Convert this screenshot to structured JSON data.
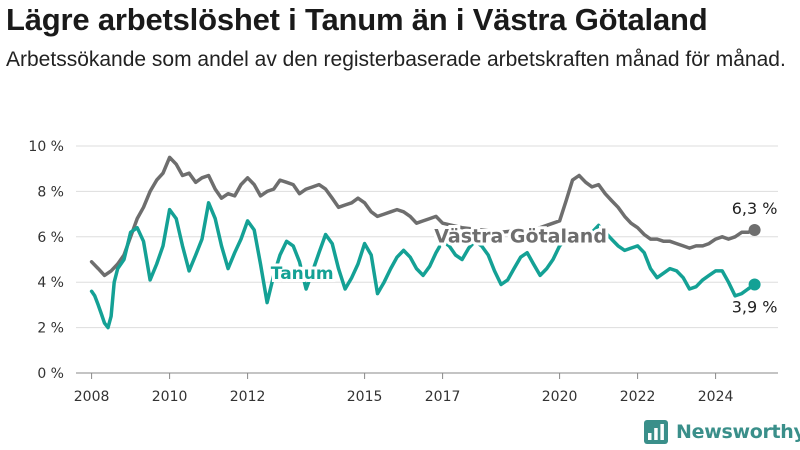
{
  "title": "Lägre arbetslöshet i Tanum än i Västra Götaland",
  "subtitle": "Arbetssökande som andel av den registerbaserade arbetskraften månad för månad.",
  "brand": {
    "name": "Newsworthy",
    "icon": "bar-chart-logo-icon",
    "color": "#3a8f8a"
  },
  "chart_data": {
    "type": "line",
    "ylim": [
      0,
      10
    ],
    "xlim": [
      2007.6,
      2025.6
    ],
    "y_ticks": [
      {
        "value": 0,
        "label": "0 %"
      },
      {
        "value": 2,
        "label": "2 %"
      },
      {
        "value": 4,
        "label": "4 %"
      },
      {
        "value": 6,
        "label": "6 %"
      },
      {
        "value": 8,
        "label": "8 %"
      },
      {
        "value": 10,
        "label": "10 %"
      }
    ],
    "x_ticks": [
      {
        "value": 2008,
        "label": "2008"
      },
      {
        "value": 2010,
        "label": "2010"
      },
      {
        "value": 2012,
        "label": "2012"
      },
      {
        "value": 2015,
        "label": "2015"
      },
      {
        "value": 2017,
        "label": "2017"
      },
      {
        "value": 2020,
        "label": "2020"
      },
      {
        "value": 2022,
        "label": "2022"
      },
      {
        "value": 2024,
        "label": "2024"
      }
    ],
    "grid": true,
    "series": [
      {
        "name": "Västra Götaland",
        "color": "#6e6e6e",
        "end_label": "6,3 %",
        "points": [
          [
            2008.0,
            4.9
          ],
          [
            2008.17,
            4.6
          ],
          [
            2008.33,
            4.3
          ],
          [
            2008.5,
            4.5
          ],
          [
            2008.67,
            4.8
          ],
          [
            2008.83,
            5.2
          ],
          [
            2009.0,
            6.0
          ],
          [
            2009.17,
            6.8
          ],
          [
            2009.33,
            7.3
          ],
          [
            2009.5,
            8.0
          ],
          [
            2009.67,
            8.5
          ],
          [
            2009.83,
            8.8
          ],
          [
            2010.0,
            9.5
          ],
          [
            2010.17,
            9.2
          ],
          [
            2010.33,
            8.7
          ],
          [
            2010.5,
            8.8
          ],
          [
            2010.67,
            8.4
          ],
          [
            2010.83,
            8.6
          ],
          [
            2011.0,
            8.7
          ],
          [
            2011.17,
            8.1
          ],
          [
            2011.33,
            7.7
          ],
          [
            2011.5,
            7.9
          ],
          [
            2011.67,
            7.8
          ],
          [
            2011.83,
            8.3
          ],
          [
            2012.0,
            8.6
          ],
          [
            2012.17,
            8.3
          ],
          [
            2012.33,
            7.8
          ],
          [
            2012.5,
            8.0
          ],
          [
            2012.67,
            8.1
          ],
          [
            2012.83,
            8.5
          ],
          [
            2013.0,
            8.4
          ],
          [
            2013.17,
            8.3
          ],
          [
            2013.33,
            7.9
          ],
          [
            2013.5,
            8.1
          ],
          [
            2013.67,
            8.2
          ],
          [
            2013.83,
            8.3
          ],
          [
            2014.0,
            8.1
          ],
          [
            2014.17,
            7.7
          ],
          [
            2014.33,
            7.3
          ],
          [
            2014.5,
            7.4
          ],
          [
            2014.67,
            7.5
          ],
          [
            2014.83,
            7.7
          ],
          [
            2015.0,
            7.5
          ],
          [
            2015.17,
            7.1
          ],
          [
            2015.33,
            6.9
          ],
          [
            2015.5,
            7.0
          ],
          [
            2015.67,
            7.1
          ],
          [
            2015.83,
            7.2
          ],
          [
            2016.0,
            7.1
          ],
          [
            2016.17,
            6.9
          ],
          [
            2016.33,
            6.6
          ],
          [
            2016.5,
            6.7
          ],
          [
            2016.67,
            6.8
          ],
          [
            2016.83,
            6.9
          ],
          [
            2017.0,
            6.6
          ],
          [
            2017.5,
            6.4
          ],
          [
            2018.0,
            6.3
          ],
          [
            2018.5,
            6.2
          ],
          [
            2019.0,
            6.3
          ],
          [
            2019.5,
            6.4
          ],
          [
            2019.83,
            6.6
          ],
          [
            2020.0,
            6.7
          ],
          [
            2020.17,
            7.6
          ],
          [
            2020.33,
            8.5
          ],
          [
            2020.5,
            8.7
          ],
          [
            2020.67,
            8.4
          ],
          [
            2020.83,
            8.2
          ],
          [
            2021.0,
            8.3
          ],
          [
            2021.17,
            7.9
          ],
          [
            2021.33,
            7.6
          ],
          [
            2021.5,
            7.3
          ],
          [
            2021.67,
            6.9
          ],
          [
            2021.83,
            6.6
          ],
          [
            2022.0,
            6.4
          ],
          [
            2022.17,
            6.1
          ],
          [
            2022.33,
            5.9
          ],
          [
            2022.5,
            5.9
          ],
          [
            2022.67,
            5.8
          ],
          [
            2022.83,
            5.8
          ],
          [
            2023.0,
            5.7
          ],
          [
            2023.17,
            5.6
          ],
          [
            2023.33,
            5.5
          ],
          [
            2023.5,
            5.6
          ],
          [
            2023.67,
            5.6
          ],
          [
            2023.83,
            5.7
          ],
          [
            2024.0,
            5.9
          ],
          [
            2024.17,
            6.0
          ],
          [
            2024.33,
            5.9
          ],
          [
            2024.5,
            6.0
          ],
          [
            2024.67,
            6.2
          ],
          [
            2024.83,
            6.2
          ],
          [
            2025.0,
            6.3
          ]
        ]
      },
      {
        "name": "Tanum",
        "color": "#14a195",
        "end_label": "3,9 %",
        "points": [
          [
            2008.0,
            3.6
          ],
          [
            2008.08,
            3.4
          ],
          [
            2008.17,
            3.0
          ],
          [
            2008.25,
            2.6
          ],
          [
            2008.33,
            2.2
          ],
          [
            2008.42,
            2.0
          ],
          [
            2008.5,
            2.5
          ],
          [
            2008.58,
            4.0
          ],
          [
            2008.67,
            4.6
          ],
          [
            2008.83,
            5.0
          ],
          [
            2009.0,
            6.2
          ],
          [
            2009.17,
            6.4
          ],
          [
            2009.33,
            5.8
          ],
          [
            2009.5,
            4.1
          ],
          [
            2009.67,
            4.8
          ],
          [
            2009.83,
            5.6
          ],
          [
            2010.0,
            7.2
          ],
          [
            2010.17,
            6.8
          ],
          [
            2010.33,
            5.6
          ],
          [
            2010.5,
            4.5
          ],
          [
            2010.67,
            5.2
          ],
          [
            2010.83,
            5.9
          ],
          [
            2011.0,
            7.5
          ],
          [
            2011.17,
            6.8
          ],
          [
            2011.33,
            5.6
          ],
          [
            2011.5,
            4.6
          ],
          [
            2011.67,
            5.3
          ],
          [
            2011.83,
            5.9
          ],
          [
            2012.0,
            6.7
          ],
          [
            2012.17,
            6.3
          ],
          [
            2012.33,
            4.8
          ],
          [
            2012.5,
            3.1
          ],
          [
            2012.67,
            4.3
          ],
          [
            2012.83,
            5.2
          ],
          [
            2013.0,
            5.8
          ],
          [
            2013.17,
            5.6
          ],
          [
            2013.33,
            4.9
          ],
          [
            2013.5,
            3.7
          ],
          [
            2013.67,
            4.5
          ],
          [
            2013.83,
            5.3
          ],
          [
            2014.0,
            6.1
          ],
          [
            2014.17,
            5.7
          ],
          [
            2014.33,
            4.6
          ],
          [
            2014.5,
            3.7
          ],
          [
            2014.67,
            4.2
          ],
          [
            2014.83,
            4.8
          ],
          [
            2015.0,
            5.7
          ],
          [
            2015.17,
            5.2
          ],
          [
            2015.33,
            3.5
          ],
          [
            2015.5,
            4.0
          ],
          [
            2015.67,
            4.6
          ],
          [
            2015.83,
            5.1
          ],
          [
            2016.0,
            5.4
          ],
          [
            2016.17,
            5.1
          ],
          [
            2016.33,
            4.6
          ],
          [
            2016.5,
            4.3
          ],
          [
            2016.67,
            4.7
          ],
          [
            2016.83,
            5.3
          ],
          [
            2017.0,
            5.8
          ],
          [
            2017.17,
            5.6
          ],
          [
            2017.33,
            5.2
          ],
          [
            2017.5,
            5.0
          ],
          [
            2017.67,
            5.5
          ],
          [
            2017.83,
            5.8
          ],
          [
            2018.0,
            5.6
          ],
          [
            2018.17,
            5.2
          ],
          [
            2018.33,
            4.5
          ],
          [
            2018.5,
            3.9
          ],
          [
            2018.67,
            4.1
          ],
          [
            2018.83,
            4.6
          ],
          [
            2019.0,
            5.1
          ],
          [
            2019.17,
            5.3
          ],
          [
            2019.33,
            4.8
          ],
          [
            2019.5,
            4.3
          ],
          [
            2019.67,
            4.6
          ],
          [
            2019.83,
            5.0
          ],
          [
            2020.0,
            5.6
          ],
          [
            2020.17,
            5.9
          ],
          [
            2020.33,
            5.8
          ],
          [
            2020.5,
            5.8
          ],
          [
            2020.67,
            6.0
          ],
          [
            2020.83,
            6.2
          ],
          [
            2021.0,
            6.5
          ],
          [
            2021.17,
            6.2
          ],
          [
            2021.33,
            5.9
          ],
          [
            2021.5,
            5.6
          ],
          [
            2021.67,
            5.4
          ],
          [
            2021.83,
            5.5
          ],
          [
            2022.0,
            5.6
          ],
          [
            2022.17,
            5.3
          ],
          [
            2022.33,
            4.6
          ],
          [
            2022.5,
            4.2
          ],
          [
            2022.67,
            4.4
          ],
          [
            2022.83,
            4.6
          ],
          [
            2023.0,
            4.5
          ],
          [
            2023.17,
            4.2
          ],
          [
            2023.33,
            3.7
          ],
          [
            2023.5,
            3.8
          ],
          [
            2023.67,
            4.1
          ],
          [
            2023.83,
            4.3
          ],
          [
            2024.0,
            4.5
          ],
          [
            2024.17,
            4.5
          ],
          [
            2024.33,
            4.0
          ],
          [
            2024.5,
            3.4
          ],
          [
            2024.67,
            3.5
          ],
          [
            2024.83,
            3.7
          ],
          [
            2025.0,
            3.9
          ]
        ]
      }
    ],
    "annotations": [
      {
        "text": "Västra Götaland",
        "series": 0
      },
      {
        "text": "Tanum",
        "series": 1
      }
    ]
  }
}
